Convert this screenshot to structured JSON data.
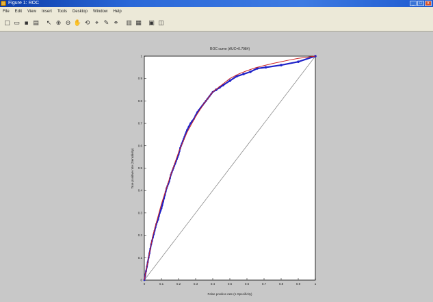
{
  "window": {
    "title": "Figure 1: ROC",
    "controls": [
      "_",
      "□",
      "x"
    ]
  },
  "menu": [
    "File",
    "Edit",
    "View",
    "Insert",
    "Tools",
    "Desktop",
    "Window",
    "Help"
  ],
  "toolbar": [
    {
      "icon": "new-file-icon",
      "glyph": "□"
    },
    {
      "icon": "open-folder-icon",
      "glyph": "▭"
    },
    {
      "icon": "save-icon",
      "glyph": "▪"
    },
    {
      "icon": "print-icon",
      "glyph": "▤"
    },
    {
      "icon": "arrow-pointer-icon",
      "glyph": "↖"
    },
    {
      "icon": "zoom-in-icon",
      "glyph": "⊕"
    },
    {
      "icon": "zoom-out-icon",
      "glyph": "⊖"
    },
    {
      "icon": "pan-icon",
      "glyph": "✋"
    },
    {
      "icon": "rotate-3d-icon",
      "glyph": "⟲"
    },
    {
      "icon": "data-cursor-icon",
      "glyph": "⌖"
    },
    {
      "icon": "brush-icon",
      "glyph": "✎"
    },
    {
      "icon": "link-icon",
      "glyph": "⚭"
    },
    {
      "icon": "colorbar-icon",
      "glyph": "▥"
    },
    {
      "icon": "legend-icon",
      "glyph": "▦"
    },
    {
      "icon": "hide-plot-tools-icon",
      "glyph": "▣"
    },
    {
      "icon": "show-plot-tools-icon",
      "glyph": "◫"
    }
  ],
  "chart_data": {
    "type": "line",
    "title": "ROC curve (AUC=0.7984)",
    "xlabel": "False positive rate (1-Specificity)",
    "ylabel": "True positive rate (Sensitivity)",
    "xlim": [
      0,
      1
    ],
    "ylim": [
      0,
      1
    ],
    "xticks": [
      "0",
      "0.1",
      "0.2",
      "0.3",
      "0.4",
      "0.5",
      "0.6",
      "0.7",
      "0.8",
      "0.9",
      "1"
    ],
    "yticks": [
      "0",
      "0.1",
      "0.2",
      "0.3",
      "0.4",
      "0.5",
      "0.6",
      "0.7",
      "0.8",
      "0.9",
      "1"
    ],
    "grid": false,
    "colors": {
      "points": "#1f22c8",
      "fit": "#cc2222",
      "diagonal": "#8a8a8a"
    },
    "series": [
      {
        "style": "points",
        "x": [
          0,
          0.005,
          0.01,
          0.015,
          0.02,
          0.025,
          0.03,
          0.035,
          0.04,
          0.045,
          0.05,
          0.055,
          0.06,
          0.065,
          0.07,
          0.075,
          0.08,
          0.085,
          0.09,
          0.095,
          0.1,
          0.105,
          0.11,
          0.115,
          0.12,
          0.125,
          0.13,
          0.135,
          0.14,
          0.145,
          0.15,
          0.155,
          0.16,
          0.165,
          0.17,
          0.175,
          0.18,
          0.185,
          0.19,
          0.195,
          0.2,
          0.205,
          0.21,
          0.215,
          0.22,
          0.225,
          0.23,
          0.235,
          0.24,
          0.245,
          0.25,
          0.26,
          0.27,
          0.28,
          0.29,
          0.3,
          0.31,
          0.32,
          0.33,
          0.34,
          0.35,
          0.36,
          0.37,
          0.38,
          0.39,
          0.4,
          0.42,
          0.44,
          0.46,
          0.5,
          0.54,
          0.58,
          0.62,
          0.66,
          0.71,
          0.8,
          0.9,
          1
        ],
        "y": [
          0,
          0.02,
          0.04,
          0.06,
          0.08,
          0.1,
          0.12,
          0.14,
          0.16,
          0.175,
          0.19,
          0.205,
          0.22,
          0.235,
          0.25,
          0.26,
          0.27,
          0.285,
          0.3,
          0.31,
          0.32,
          0.335,
          0.35,
          0.365,
          0.38,
          0.395,
          0.41,
          0.42,
          0.43,
          0.44,
          0.455,
          0.47,
          0.48,
          0.49,
          0.5,
          0.51,
          0.52,
          0.53,
          0.54,
          0.55,
          0.56,
          0.575,
          0.59,
          0.6,
          0.61,
          0.62,
          0.63,
          0.64,
          0.65,
          0.66,
          0.67,
          0.685,
          0.7,
          0.71,
          0.72,
          0.735,
          0.75,
          0.76,
          0.77,
          0.78,
          0.79,
          0.8,
          0.81,
          0.82,
          0.83,
          0.84,
          0.85,
          0.86,
          0.87,
          0.89,
          0.91,
          0.92,
          0.93,
          0.945,
          0.95,
          0.96,
          0.975,
          1
        ]
      },
      {
        "style": "fit-line",
        "x": [
          0,
          0.05,
          0.1,
          0.15,
          0.2,
          0.25,
          0.3,
          0.35,
          0.4,
          0.45,
          0.5,
          0.55,
          0.6,
          0.65,
          0.7,
          0.75,
          0.8,
          0.85,
          0.9,
          0.95,
          1
        ],
        "y": [
          0,
          0.2,
          0.34,
          0.46,
          0.57,
          0.66,
          0.73,
          0.79,
          0.84,
          0.87,
          0.9,
          0.92,
          0.935,
          0.948,
          0.958,
          0.967,
          0.975,
          0.983,
          0.99,
          0.995,
          1
        ]
      },
      {
        "style": "diagonal",
        "x": [
          0,
          1
        ],
        "y": [
          0,
          1
        ]
      }
    ]
  }
}
